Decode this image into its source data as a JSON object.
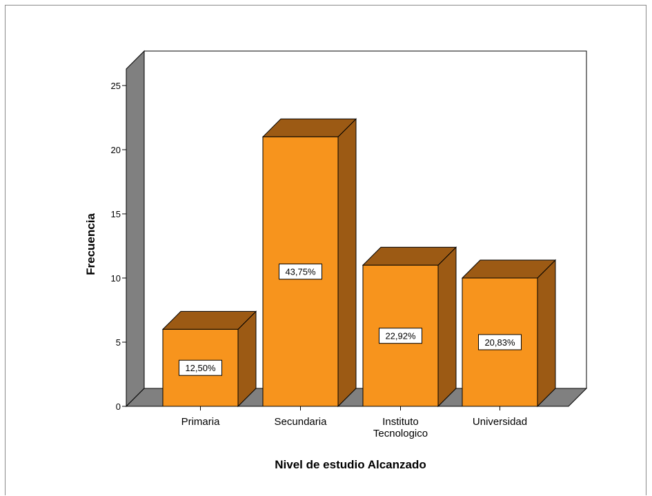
{
  "chart_data": {
    "type": "bar",
    "categories": [
      "Primaria",
      "Secundaria",
      "Instituto Tecnologico",
      "Universidad"
    ],
    "category_lines": [
      [
        "Primaria"
      ],
      [
        "Secundaria"
      ],
      [
        "Instituto",
        "Tecnologico"
      ],
      [
        "Universidad"
      ]
    ],
    "values": [
      6,
      21,
      11,
      10
    ],
    "data_labels": [
      "12,50%",
      "43,75%",
      "22,92%",
      "20,83%"
    ],
    "xlabel": "Nivel de estudio Alcanzado",
    "ylabel": "Frecuencia",
    "ylim": [
      0,
      25
    ],
    "yticks": [
      0,
      5,
      10,
      15,
      20,
      25
    ],
    "grid": false,
    "legend": "none",
    "style": "3d",
    "colors": {
      "bar_front": "#f7941d",
      "bar_top": "#9c5a14",
      "bar_side": "#9c5a14",
      "floor": "#808080",
      "back_wall": "#ffffff"
    }
  }
}
